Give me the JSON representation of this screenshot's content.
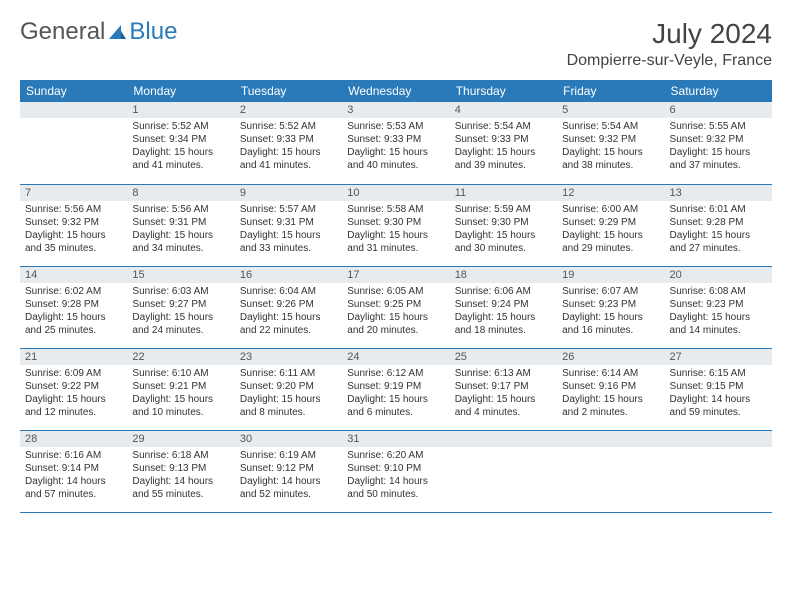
{
  "logo": {
    "textA": "General",
    "textB": "Blue"
  },
  "title": "July 2024",
  "location": "Dompierre-sur-Veyle, France",
  "colors": {
    "header_bg": "#2a7ab9",
    "daynum_bg": "#e8ebee",
    "text": "#333333"
  },
  "day_headers": [
    "Sunday",
    "Monday",
    "Tuesday",
    "Wednesday",
    "Thursday",
    "Friday",
    "Saturday"
  ],
  "weeks": [
    [
      {
        "n": "",
        "sunrise": "",
        "sunset": "",
        "daylight": ""
      },
      {
        "n": "1",
        "sunrise": "Sunrise: 5:52 AM",
        "sunset": "Sunset: 9:34 PM",
        "daylight": "Daylight: 15 hours and 41 minutes."
      },
      {
        "n": "2",
        "sunrise": "Sunrise: 5:52 AM",
        "sunset": "Sunset: 9:33 PM",
        "daylight": "Daylight: 15 hours and 41 minutes."
      },
      {
        "n": "3",
        "sunrise": "Sunrise: 5:53 AM",
        "sunset": "Sunset: 9:33 PM",
        "daylight": "Daylight: 15 hours and 40 minutes."
      },
      {
        "n": "4",
        "sunrise": "Sunrise: 5:54 AM",
        "sunset": "Sunset: 9:33 PM",
        "daylight": "Daylight: 15 hours and 39 minutes."
      },
      {
        "n": "5",
        "sunrise": "Sunrise: 5:54 AM",
        "sunset": "Sunset: 9:32 PM",
        "daylight": "Daylight: 15 hours and 38 minutes."
      },
      {
        "n": "6",
        "sunrise": "Sunrise: 5:55 AM",
        "sunset": "Sunset: 9:32 PM",
        "daylight": "Daylight: 15 hours and 37 minutes."
      }
    ],
    [
      {
        "n": "7",
        "sunrise": "Sunrise: 5:56 AM",
        "sunset": "Sunset: 9:32 PM",
        "daylight": "Daylight: 15 hours and 35 minutes."
      },
      {
        "n": "8",
        "sunrise": "Sunrise: 5:56 AM",
        "sunset": "Sunset: 9:31 PM",
        "daylight": "Daylight: 15 hours and 34 minutes."
      },
      {
        "n": "9",
        "sunrise": "Sunrise: 5:57 AM",
        "sunset": "Sunset: 9:31 PM",
        "daylight": "Daylight: 15 hours and 33 minutes."
      },
      {
        "n": "10",
        "sunrise": "Sunrise: 5:58 AM",
        "sunset": "Sunset: 9:30 PM",
        "daylight": "Daylight: 15 hours and 31 minutes."
      },
      {
        "n": "11",
        "sunrise": "Sunrise: 5:59 AM",
        "sunset": "Sunset: 9:30 PM",
        "daylight": "Daylight: 15 hours and 30 minutes."
      },
      {
        "n": "12",
        "sunrise": "Sunrise: 6:00 AM",
        "sunset": "Sunset: 9:29 PM",
        "daylight": "Daylight: 15 hours and 29 minutes."
      },
      {
        "n": "13",
        "sunrise": "Sunrise: 6:01 AM",
        "sunset": "Sunset: 9:28 PM",
        "daylight": "Daylight: 15 hours and 27 minutes."
      }
    ],
    [
      {
        "n": "14",
        "sunrise": "Sunrise: 6:02 AM",
        "sunset": "Sunset: 9:28 PM",
        "daylight": "Daylight: 15 hours and 25 minutes."
      },
      {
        "n": "15",
        "sunrise": "Sunrise: 6:03 AM",
        "sunset": "Sunset: 9:27 PM",
        "daylight": "Daylight: 15 hours and 24 minutes."
      },
      {
        "n": "16",
        "sunrise": "Sunrise: 6:04 AM",
        "sunset": "Sunset: 9:26 PM",
        "daylight": "Daylight: 15 hours and 22 minutes."
      },
      {
        "n": "17",
        "sunrise": "Sunrise: 6:05 AM",
        "sunset": "Sunset: 9:25 PM",
        "daylight": "Daylight: 15 hours and 20 minutes."
      },
      {
        "n": "18",
        "sunrise": "Sunrise: 6:06 AM",
        "sunset": "Sunset: 9:24 PM",
        "daylight": "Daylight: 15 hours and 18 minutes."
      },
      {
        "n": "19",
        "sunrise": "Sunrise: 6:07 AM",
        "sunset": "Sunset: 9:23 PM",
        "daylight": "Daylight: 15 hours and 16 minutes."
      },
      {
        "n": "20",
        "sunrise": "Sunrise: 6:08 AM",
        "sunset": "Sunset: 9:23 PM",
        "daylight": "Daylight: 15 hours and 14 minutes."
      }
    ],
    [
      {
        "n": "21",
        "sunrise": "Sunrise: 6:09 AM",
        "sunset": "Sunset: 9:22 PM",
        "daylight": "Daylight: 15 hours and 12 minutes."
      },
      {
        "n": "22",
        "sunrise": "Sunrise: 6:10 AM",
        "sunset": "Sunset: 9:21 PM",
        "daylight": "Daylight: 15 hours and 10 minutes."
      },
      {
        "n": "23",
        "sunrise": "Sunrise: 6:11 AM",
        "sunset": "Sunset: 9:20 PM",
        "daylight": "Daylight: 15 hours and 8 minutes."
      },
      {
        "n": "24",
        "sunrise": "Sunrise: 6:12 AM",
        "sunset": "Sunset: 9:19 PM",
        "daylight": "Daylight: 15 hours and 6 minutes."
      },
      {
        "n": "25",
        "sunrise": "Sunrise: 6:13 AM",
        "sunset": "Sunset: 9:17 PM",
        "daylight": "Daylight: 15 hours and 4 minutes."
      },
      {
        "n": "26",
        "sunrise": "Sunrise: 6:14 AM",
        "sunset": "Sunset: 9:16 PM",
        "daylight": "Daylight: 15 hours and 2 minutes."
      },
      {
        "n": "27",
        "sunrise": "Sunrise: 6:15 AM",
        "sunset": "Sunset: 9:15 PM",
        "daylight": "Daylight: 14 hours and 59 minutes."
      }
    ],
    [
      {
        "n": "28",
        "sunrise": "Sunrise: 6:16 AM",
        "sunset": "Sunset: 9:14 PM",
        "daylight": "Daylight: 14 hours and 57 minutes."
      },
      {
        "n": "29",
        "sunrise": "Sunrise: 6:18 AM",
        "sunset": "Sunset: 9:13 PM",
        "daylight": "Daylight: 14 hours and 55 minutes."
      },
      {
        "n": "30",
        "sunrise": "Sunrise: 6:19 AM",
        "sunset": "Sunset: 9:12 PM",
        "daylight": "Daylight: 14 hours and 52 minutes."
      },
      {
        "n": "31",
        "sunrise": "Sunrise: 6:20 AM",
        "sunset": "Sunset: 9:10 PM",
        "daylight": "Daylight: 14 hours and 50 minutes."
      },
      {
        "n": "",
        "sunrise": "",
        "sunset": "",
        "daylight": ""
      },
      {
        "n": "",
        "sunrise": "",
        "sunset": "",
        "daylight": ""
      },
      {
        "n": "",
        "sunrise": "",
        "sunset": "",
        "daylight": ""
      }
    ]
  ]
}
